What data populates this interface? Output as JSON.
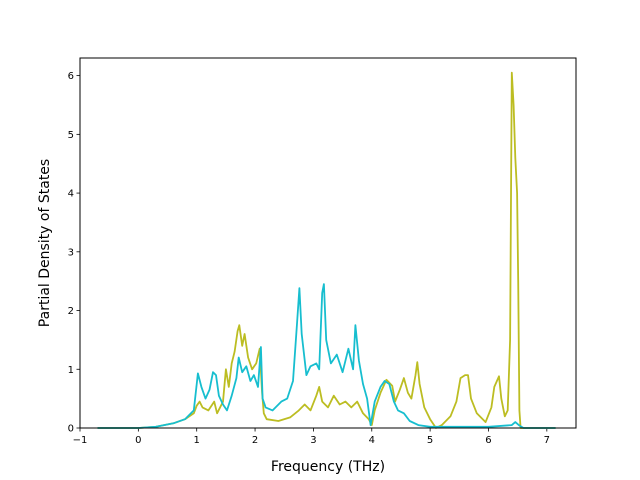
{
  "chart_data": {
    "type": "line",
    "title": "",
    "xlabel": "Frequency (THz)",
    "ylabel": "Partial Density of States",
    "xlim": [
      -1.0,
      7.5
    ],
    "ylim": [
      0,
      6.3
    ],
    "xticks": [
      -1,
      0,
      1,
      2,
      3,
      4,
      5,
      6,
      7
    ],
    "yticks": [
      0,
      1,
      2,
      3,
      4,
      5,
      6
    ],
    "grid": false,
    "legend": "none",
    "series": [
      {
        "color": "#bcbd22",
        "points": [
          [
            -0.7,
            0.0
          ],
          [
            0.0,
            0.0
          ],
          [
            0.3,
            0.02
          ],
          [
            0.6,
            0.08
          ],
          [
            0.8,
            0.15
          ],
          [
            0.95,
            0.25
          ],
          [
            1.0,
            0.38
          ],
          [
            1.05,
            0.45
          ],
          [
            1.1,
            0.35
          ],
          [
            1.2,
            0.3
          ],
          [
            1.3,
            0.45
          ],
          [
            1.35,
            0.25
          ],
          [
            1.45,
            0.45
          ],
          [
            1.5,
            1.0
          ],
          [
            1.55,
            0.7
          ],
          [
            1.6,
            1.1
          ],
          [
            1.65,
            1.3
          ],
          [
            1.7,
            1.65
          ],
          [
            1.73,
            1.75
          ],
          [
            1.78,
            1.4
          ],
          [
            1.82,
            1.6
          ],
          [
            1.88,
            1.2
          ],
          [
            1.95,
            1.0
          ],
          [
            2.02,
            1.1
          ],
          [
            2.08,
            1.35
          ],
          [
            2.12,
            0.6
          ],
          [
            2.15,
            0.25
          ],
          [
            2.2,
            0.15
          ],
          [
            2.4,
            0.12
          ],
          [
            2.6,
            0.18
          ],
          [
            2.75,
            0.3
          ],
          [
            2.85,
            0.4
          ],
          [
            2.95,
            0.3
          ],
          [
            3.05,
            0.55
          ],
          [
            3.1,
            0.7
          ],
          [
            3.15,
            0.45
          ],
          [
            3.25,
            0.35
          ],
          [
            3.35,
            0.55
          ],
          [
            3.45,
            0.4
          ],
          [
            3.55,
            0.45
          ],
          [
            3.65,
            0.35
          ],
          [
            3.75,
            0.45
          ],
          [
            3.85,
            0.25
          ],
          [
            3.95,
            0.15
          ],
          [
            4.0,
            0.05
          ],
          [
            4.05,
            0.3
          ],
          [
            4.15,
            0.6
          ],
          [
            4.25,
            0.82
          ],
          [
            4.35,
            0.72
          ],
          [
            4.4,
            0.45
          ],
          [
            4.48,
            0.65
          ],
          [
            4.55,
            0.85
          ],
          [
            4.62,
            0.6
          ],
          [
            4.68,
            0.5
          ],
          [
            4.75,
            0.9
          ],
          [
            4.78,
            1.12
          ],
          [
            4.82,
            0.75
          ],
          [
            4.9,
            0.35
          ],
          [
            5.0,
            0.15
          ],
          [
            5.1,
            0.0
          ],
          [
            5.2,
            0.05
          ],
          [
            5.35,
            0.2
          ],
          [
            5.45,
            0.45
          ],
          [
            5.52,
            0.85
          ],
          [
            5.6,
            0.9
          ],
          [
            5.65,
            0.9
          ],
          [
            5.7,
            0.5
          ],
          [
            5.8,
            0.25
          ],
          [
            5.95,
            0.1
          ],
          [
            6.05,
            0.35
          ],
          [
            6.1,
            0.7
          ],
          [
            6.18,
            0.88
          ],
          [
            6.22,
            0.5
          ],
          [
            6.28,
            0.2
          ],
          [
            6.33,
            0.3
          ],
          [
            6.37,
            1.5
          ],
          [
            6.4,
            6.05
          ],
          [
            6.43,
            5.5
          ],
          [
            6.46,
            4.6
          ],
          [
            6.49,
            4.0
          ],
          [
            6.51,
            2.5
          ],
          [
            6.53,
            0.3
          ],
          [
            6.55,
            0.0
          ],
          [
            7.15,
            0.0
          ]
        ]
      },
      {
        "color": "#17becf",
        "points": [
          [
            -0.7,
            0.0
          ],
          [
            0.0,
            0.0
          ],
          [
            0.3,
            0.02
          ],
          [
            0.6,
            0.08
          ],
          [
            0.8,
            0.15
          ],
          [
            0.95,
            0.3
          ],
          [
            1.02,
            0.93
          ],
          [
            1.08,
            0.7
          ],
          [
            1.15,
            0.5
          ],
          [
            1.22,
            0.65
          ],
          [
            1.28,
            0.95
          ],
          [
            1.33,
            0.9
          ],
          [
            1.38,
            0.55
          ],
          [
            1.45,
            0.4
          ],
          [
            1.52,
            0.3
          ],
          [
            1.6,
            0.55
          ],
          [
            1.68,
            0.85
          ],
          [
            1.72,
            1.2
          ],
          [
            1.78,
            0.95
          ],
          [
            1.85,
            1.05
          ],
          [
            1.92,
            0.8
          ],
          [
            1.98,
            0.9
          ],
          [
            2.05,
            0.7
          ],
          [
            2.1,
            1.38
          ],
          [
            2.13,
            0.5
          ],
          [
            2.18,
            0.35
          ],
          [
            2.3,
            0.3
          ],
          [
            2.45,
            0.45
          ],
          [
            2.55,
            0.5
          ],
          [
            2.65,
            0.8
          ],
          [
            2.72,
            1.8
          ],
          [
            2.76,
            2.38
          ],
          [
            2.8,
            1.6
          ],
          [
            2.88,
            0.9
          ],
          [
            2.95,
            1.05
          ],
          [
            3.05,
            1.1
          ],
          [
            3.1,
            1.0
          ],
          [
            3.15,
            2.3
          ],
          [
            3.18,
            2.45
          ],
          [
            3.22,
            1.5
          ],
          [
            3.3,
            1.1
          ],
          [
            3.4,
            1.25
          ],
          [
            3.5,
            0.95
          ],
          [
            3.6,
            1.35
          ],
          [
            3.68,
            1.0
          ],
          [
            3.72,
            1.75
          ],
          [
            3.78,
            1.15
          ],
          [
            3.85,
            0.75
          ],
          [
            3.92,
            0.5
          ],
          [
            3.98,
            0.05
          ],
          [
            4.05,
            0.45
          ],
          [
            4.15,
            0.7
          ],
          [
            4.22,
            0.8
          ],
          [
            4.3,
            0.75
          ],
          [
            4.38,
            0.45
          ],
          [
            4.45,
            0.3
          ],
          [
            4.55,
            0.25
          ],
          [
            4.65,
            0.12
          ],
          [
            4.8,
            0.05
          ],
          [
            5.0,
            0.02
          ],
          [
            6.0,
            0.02
          ],
          [
            6.4,
            0.05
          ],
          [
            6.46,
            0.1
          ],
          [
            6.52,
            0.05
          ],
          [
            6.6,
            0.0
          ],
          [
            7.15,
            0.0
          ]
        ]
      }
    ]
  }
}
